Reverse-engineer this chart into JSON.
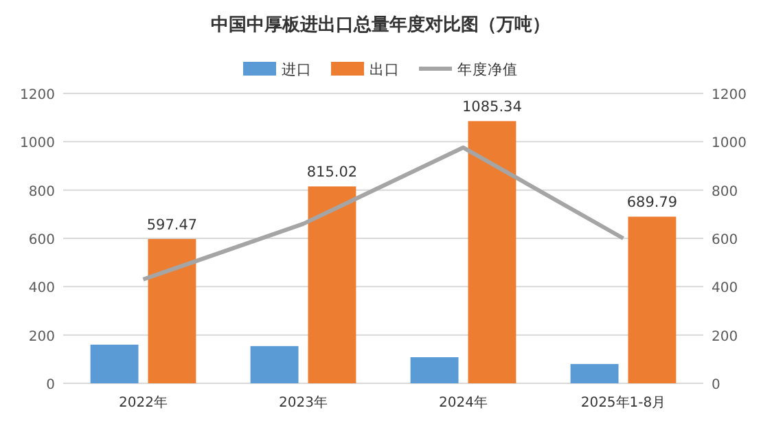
{
  "chart_data": {
    "type": "bar",
    "title": "中国中厚板进出口总量年度对比图（万吨）",
    "categories": [
      "2022年",
      "2023年",
      "2024年",
      "2025年1-8月"
    ],
    "series": [
      {
        "name": "进口",
        "color": "#5b9bd5",
        "values": [
          160,
          154,
          108,
          80
        ]
      },
      {
        "name": "出口",
        "color": "#ed7d31",
        "values": [
          597.47,
          815.02,
          1085.34,
          689.79
        ],
        "value_labels": [
          "597.47",
          "815.02",
          "1085.34",
          "689.79"
        ]
      },
      {
        "name": "年度净值",
        "type": "line",
        "color": "#a5a5a5",
        "values": [
          430,
          660,
          976,
          600
        ]
      }
    ],
    "ylim": [
      0,
      1200
    ],
    "yticks": [
      0,
      200,
      400,
      600,
      800,
      1000,
      1200
    ],
    "y2lim": [
      0,
      1200
    ],
    "y2ticks": [
      0,
      200,
      400,
      600,
      800,
      1000,
      1200
    ],
    "grid": "y",
    "legend": "top",
    "marker": "none"
  }
}
